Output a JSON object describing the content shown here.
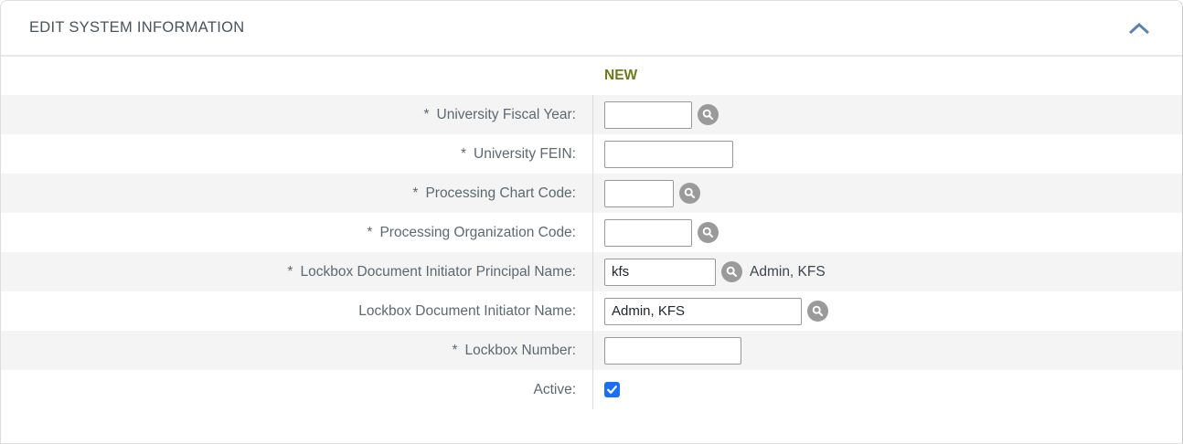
{
  "panel": {
    "title": "EDIT SYSTEM INFORMATION",
    "collapse_icon": "chevron-up-icon",
    "column_header": "NEW"
  },
  "required_marker": "*",
  "colors": {
    "new_header": "#6f7a1e",
    "checkbox_accent": "#1a6ff3",
    "title_text": "#4a525a",
    "label_text": "#5d686f",
    "row_alt_bg": "#f4f4f4",
    "chevron": "#5e82ab",
    "lookup_icon_bg": "#9a9a9a",
    "input_border": "#999999",
    "divider": "#dcdcdc"
  },
  "rows": [
    {
      "label": "University Fiscal Year:",
      "required": true,
      "type": "text",
      "value": "",
      "lookup": true,
      "input_width": 96
    },
    {
      "label": "University FEIN:",
      "required": true,
      "type": "text",
      "value": "",
      "lookup": false,
      "input_width": 141
    },
    {
      "label": "Processing Chart Code:",
      "required": true,
      "type": "text",
      "value": "",
      "lookup": true,
      "input_width": 76
    },
    {
      "label": "Processing Organization Code:",
      "required": true,
      "type": "text",
      "value": "",
      "lookup": true,
      "input_width": 96
    },
    {
      "label": "Lockbox Document Initiator Principal Name:",
      "required": true,
      "type": "text",
      "value": "kfs",
      "lookup": true,
      "suffix_text": "Admin, KFS",
      "input_width": 122
    },
    {
      "label": "Lockbox Document Initiator Name:",
      "required": false,
      "type": "text",
      "value": "Admin, KFS",
      "lookup": true,
      "input_width": 216
    },
    {
      "label": "Lockbox Number:",
      "required": true,
      "type": "text",
      "value": "",
      "lookup": false,
      "input_width": 150
    },
    {
      "label": "Active:",
      "required": false,
      "type": "checkbox",
      "checked": true,
      "lookup": false
    }
  ]
}
